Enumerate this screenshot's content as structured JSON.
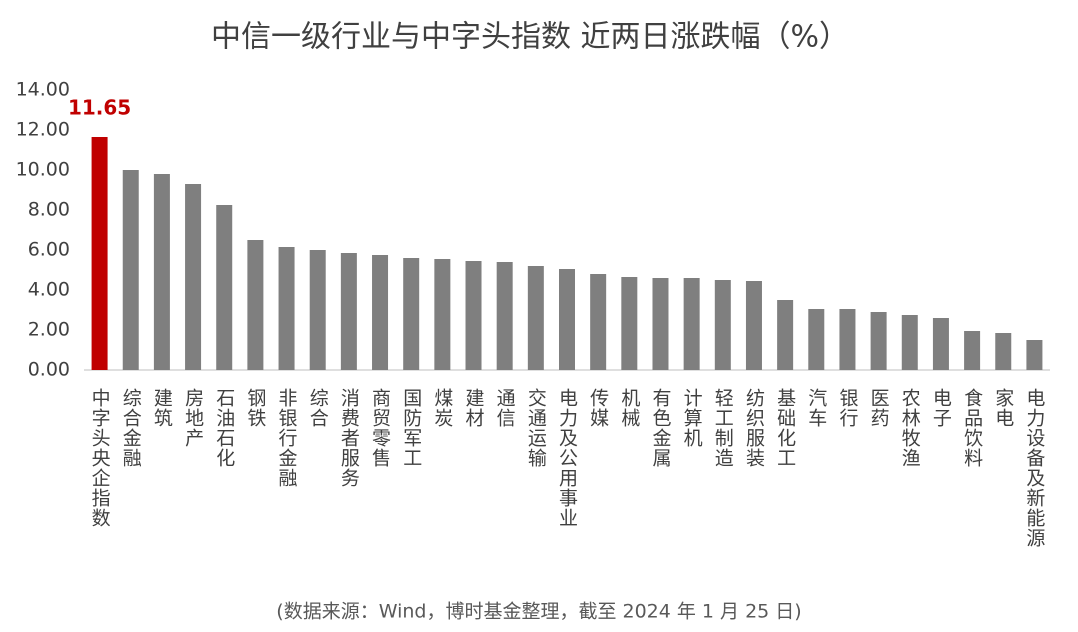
{
  "chart_data": {
    "type": "bar",
    "title": "中信一级行业与中字头指数 近两日涨跌幅（%）",
    "source": "(数据来源：Wind，博时基金整理，截至 2024 年 1 月 25 日)",
    "categories": [
      "中字头央企指数",
      "综合金融",
      "建筑",
      "房地产",
      "石油石化",
      "钢铁",
      "非银行金融",
      "综合",
      "消费者服务",
      "商贸零售",
      "国防军工",
      "煤炭",
      "建材",
      "通信",
      "交通运输",
      "电力及公用事业",
      "传媒",
      "机械",
      "有色金属",
      "计算机",
      "轻工制造",
      "纺织服装",
      "基础化工",
      "汽车",
      "银行",
      "医药",
      "农林牧渔",
      "电子",
      "食品饮料",
      "家电",
      "电力设备及新能源"
    ],
    "values": [
      11.65,
      10.0,
      9.8,
      9.3,
      8.25,
      6.5,
      6.15,
      6.0,
      5.85,
      5.75,
      5.6,
      5.55,
      5.45,
      5.4,
      5.2,
      5.05,
      4.8,
      4.65,
      4.6,
      4.6,
      4.5,
      4.45,
      3.5,
      3.05,
      3.05,
      2.9,
      2.75,
      2.6,
      1.95,
      1.85,
      1.5
    ],
    "value_labels": [
      "11.65",
      null,
      null,
      null,
      null,
      null,
      null,
      null,
      null,
      null,
      null,
      null,
      null,
      null,
      null,
      null,
      null,
      null,
      null,
      null,
      null,
      null,
      null,
      null,
      null,
      null,
      null,
      null,
      null,
      null,
      null
    ],
    "colors": [
      "#c00000",
      "#7f7f7f",
      "#7f7f7f",
      "#7f7f7f",
      "#7f7f7f",
      "#7f7f7f",
      "#7f7f7f",
      "#7f7f7f",
      "#7f7f7f",
      "#7f7f7f",
      "#7f7f7f",
      "#7f7f7f",
      "#7f7f7f",
      "#7f7f7f",
      "#7f7f7f",
      "#7f7f7f",
      "#7f7f7f",
      "#7f7f7f",
      "#7f7f7f",
      "#7f7f7f",
      "#7f7f7f",
      "#7f7f7f",
      "#7f7f7f",
      "#7f7f7f",
      "#7f7f7f",
      "#7f7f7f",
      "#7f7f7f",
      "#7f7f7f",
      "#7f7f7f",
      "#7f7f7f",
      "#7f7f7f"
    ],
    "ylim": [
      0,
      14
    ],
    "yticks": [
      {
        "value": 0,
        "label": "0.00"
      },
      {
        "value": 2,
        "label": "2.00"
      },
      {
        "value": 4,
        "label": "4.00"
      },
      {
        "value": 6,
        "label": "6.00"
      },
      {
        "value": 8,
        "label": "8.00"
      },
      {
        "value": 10,
        "label": "10.00"
      },
      {
        "value": 12,
        "label": "12.00"
      },
      {
        "value": 14,
        "label": "14.00"
      }
    ],
    "grid": false
  }
}
